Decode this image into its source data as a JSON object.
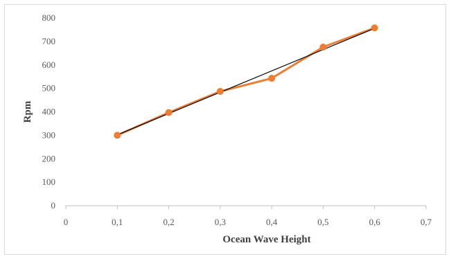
{
  "chart_data": {
    "type": "line",
    "title": "",
    "xlabel": "Ocean Wave Height",
    "ylabel": "Rpm",
    "xlim": [
      0,
      0.7
    ],
    "ylim": [
      0,
      800
    ],
    "x_ticks": [
      0,
      0.1,
      0.2,
      0.3,
      0.4,
      0.5,
      0.6,
      0.7
    ],
    "x_tick_labels": [
      "0",
      "0,1",
      "0,2",
      "0,3",
      "0,4",
      "0,5",
      "0,6",
      "0,7"
    ],
    "y_ticks": [
      0,
      100,
      200,
      300,
      400,
      500,
      600,
      700,
      800
    ],
    "y_tick_labels": [
      "0",
      "100",
      "200",
      "300",
      "400",
      "500",
      "600",
      "700",
      "800"
    ],
    "grid": false,
    "legend": "none",
    "series": [
      {
        "x": [
          0.1,
          0.2,
          0.3,
          0.4,
          0.5,
          0.6
        ],
        "y": [
          300,
          397,
          487,
          543,
          676,
          758
        ],
        "color": "#ed7d31",
        "marker": "circle"
      }
    ],
    "trendline": {
      "type": "linear",
      "color": "#000000",
      "x": [
        0.1,
        0.6
      ],
      "y": [
        302,
        756
      ]
    }
  }
}
